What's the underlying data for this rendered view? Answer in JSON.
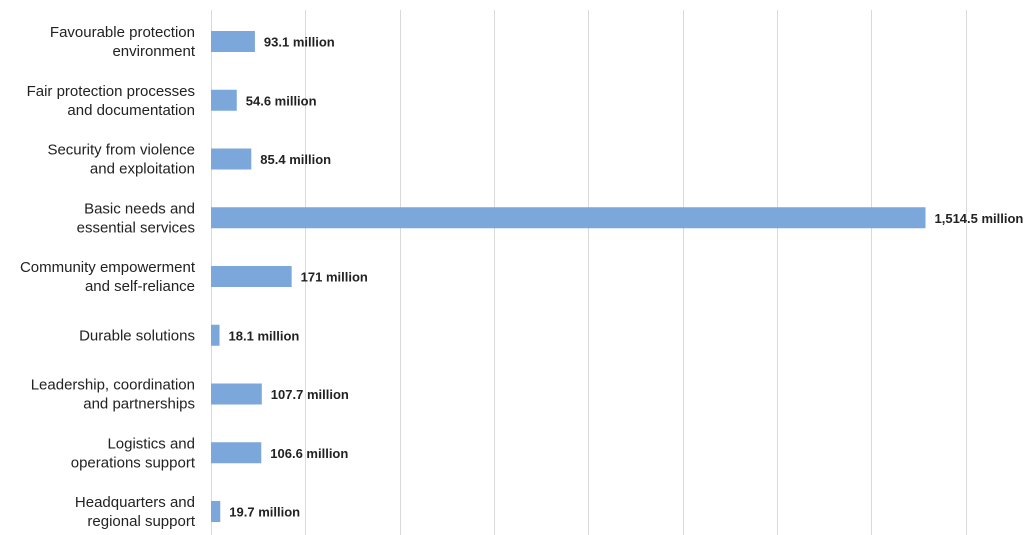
{
  "chart_data": {
    "type": "bar",
    "orientation": "horizontal",
    "categories": [
      [
        "Favourable protection",
        "environment"
      ],
      [
        "Fair protection processes",
        "and documentation"
      ],
      [
        "Security from violence",
        "and exploitation"
      ],
      [
        "Basic needs and",
        "essential services"
      ],
      [
        "Community empowerment",
        "and self-reliance"
      ],
      [
        "Durable solutions"
      ],
      [
        "Leadership, coordination",
        "and partnerships"
      ],
      [
        "Logistics and",
        "operations support"
      ],
      [
        "Headquarters and",
        "regional support"
      ]
    ],
    "values": [
      93.1,
      54.6,
      85.4,
      1514.5,
      171,
      18.1,
      107.7,
      106.6,
      19.7
    ],
    "value_labels": [
      "93.1 million",
      "54.6 million",
      "85.4 million",
      "1,514.5 million",
      "171 million",
      "18.1 million",
      "107.7 million",
      "106.6 million",
      "19.7 million"
    ],
    "unit": "million",
    "title": "",
    "xlabel": "",
    "ylabel": "",
    "xlim": [
      0,
      1700
    ],
    "gridlines": [
      0,
      200,
      400,
      600,
      800,
      1000,
      1200,
      1400,
      1600
    ],
    "grid": true,
    "legend": "none",
    "bar_color": "#7ba7da"
  }
}
